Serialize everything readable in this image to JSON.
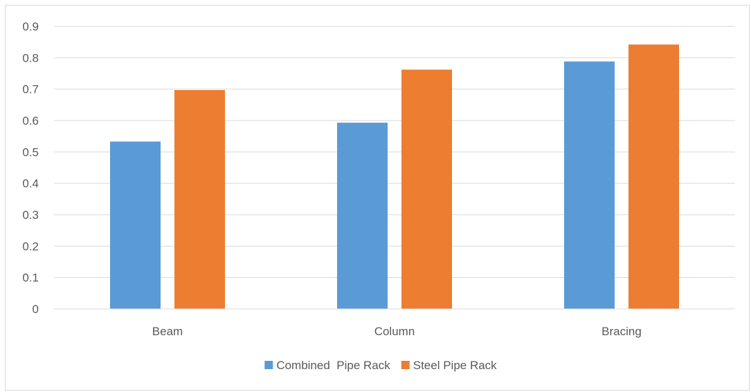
{
  "chart_data": {
    "type": "bar",
    "categories": [
      "Beam",
      "Column",
      "Bracing"
    ],
    "series": [
      {
        "name": "Combined  Pipe Rack",
        "values": [
          0.533,
          0.593,
          0.788
        ],
        "color": "#5b9bd5"
      },
      {
        "name": "Steel Pipe Rack",
        "values": [
          0.697,
          0.762,
          0.842
        ],
        "color": "#ed7d31"
      }
    ],
    "title": "",
    "xlabel": "",
    "ylabel": "",
    "ylim": [
      0,
      0.9
    ],
    "yticks": [
      "0",
      "0.1",
      "0.2",
      "0.3",
      "0.4",
      "0.5",
      "0.6",
      "0.7",
      "0.8",
      "0.9"
    ],
    "grid": true,
    "legend_position": "bottom"
  }
}
